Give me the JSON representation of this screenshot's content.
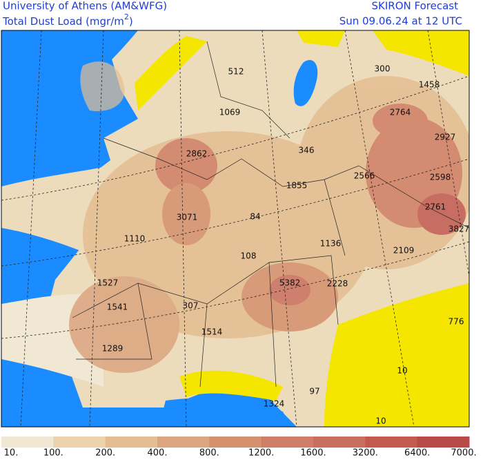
{
  "header": {
    "left_line1": "University of Athens (AM&WFG)",
    "left_line2": "Total Dust Load (mgr/m",
    "left_line2_sup": "2",
    "left_line2_end": ")",
    "right_line1": "SKIRON Forecast",
    "right_line2": "Sun 09.06.24 at 12 UTC"
  },
  "map_labels": [
    512,
    300,
    1458,
    1069,
    2764,
    2927,
    346,
    2862,
    2566,
    2598,
    1855,
    2761,
    3071,
    84,
    3827,
    1110,
    1136,
    2109,
    108,
    1527,
    5382,
    2228,
    1541,
    307,
    1514,
    776,
    1289,
    10,
    97,
    1324,
    10
  ],
  "colorbar": {
    "labels": [
      "10.",
      "100.",
      "200.",
      "400.",
      "800.",
      "1200.",
      "1600.",
      "3200.",
      "6400.",
      "7000."
    ],
    "colors": [
      "#f1e8d4",
      "#ead3ac",
      "#e4bd92",
      "#dba580",
      "#d5906e",
      "#cf7d66",
      "#c96f60",
      "#c25a52",
      "#b84a48"
    ]
  }
}
